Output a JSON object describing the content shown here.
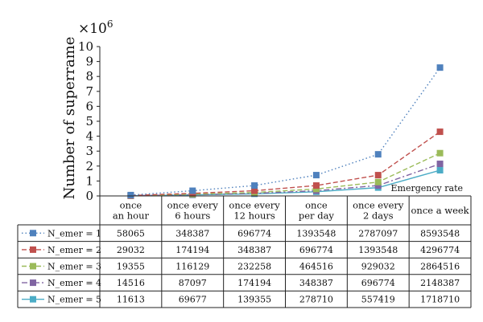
{
  "chart_data": {
    "type": "line",
    "ylabel": "Number of superrame",
    "y_exponent_label": "×10",
    "y_exponent_power": "6",
    "ylim": [
      0,
      10
    ],
    "y_ticks": [
      "0",
      "1",
      "2",
      "3",
      "4",
      "5",
      "6",
      "7",
      "8",
      "9",
      "10"
    ],
    "xlabel": "Emergency rate",
    "categories": [
      [
        "once",
        "an hour"
      ],
      [
        "once every",
        "6 hours"
      ],
      [
        "once every",
        "12 hours"
      ],
      [
        "once",
        "per day"
      ],
      [
        "once every",
        "2 days"
      ],
      [
        "once a week"
      ]
    ],
    "series": [
      {
        "name": "N_emer = 1",
        "color": "#4f81bd",
        "dash": "dotted",
        "marker": "square",
        "values": [
          58065,
          348387,
          696774,
          1393548,
          2787097,
          8593548
        ],
        "labels": [
          "58065",
          "348387",
          "696774",
          "1393548",
          "2787097",
          "8593548"
        ]
      },
      {
        "name": "N_emer = 2",
        "color": "#c0504d",
        "dash": "dashed",
        "marker": "square",
        "values": [
          29032,
          174194,
          348387,
          696774,
          1393548,
          4296774
        ],
        "labels": [
          "29032",
          "174194",
          "348387",
          "696774",
          "1393548",
          "4296774"
        ]
      },
      {
        "name": "N_emer = 3",
        "color": "#9bbb59",
        "dash": "dashed",
        "marker": "square",
        "values": [
          19355,
          116129,
          232258,
          464516,
          929032,
          2864516
        ],
        "labels": [
          "19355",
          "116129",
          "232258",
          "464516",
          "929032",
          "2864516"
        ]
      },
      {
        "name": "N_emer = 4",
        "color": "#8064a2",
        "dash": "dashdot",
        "marker": "square",
        "values": [
          14516,
          87097,
          174194,
          348387,
          696774,
          2148387
        ],
        "labels": [
          "14516",
          "87097",
          "174194",
          "348387",
          "696774",
          "2148387"
        ]
      },
      {
        "name": "N_emer = 5",
        "color": "#4bacc6",
        "dash": "solid",
        "marker": "square",
        "values": [
          11613,
          69677,
          139355,
          278710,
          557419,
          1718710
        ],
        "labels": [
          "11613",
          "69677",
          "139355",
          "278710",
          "557419",
          "1718710"
        ]
      }
    ]
  }
}
